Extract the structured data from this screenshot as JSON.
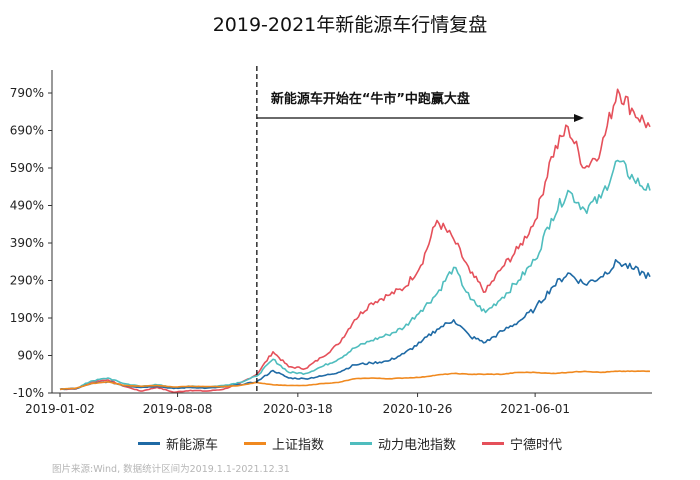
{
  "title": "2019-2021年新能源车行情复盘",
  "source_note": "图片来源:Wind, 数据统计区间为2019.1.1-2021.12.31",
  "colors": {
    "新能源车": "#1f6aa5",
    "上证指数": "#f0891f",
    "动力电池指数": "#4fbdbe",
    "宁德时代": "#e5505a",
    "axis": "#333333"
  },
  "chart_data": {
    "type": "line",
    "title": "2019-2021年新能源车行情复盘",
    "ylim": [
      -10,
      830
    ],
    "y_ticks": [
      "-10%",
      "90%",
      "190%",
      "290%",
      "390%",
      "490%",
      "590%",
      "690%",
      "790%"
    ],
    "x_ticks": [
      "2019-01-02",
      "2019-08-08",
      "2020-03-18",
      "2020-10-26",
      "2021-06-01"
    ],
    "grid": false,
    "legend_position": "bottom",
    "annotation": {
      "text": "新能源车开始在“牛市”中跑赢大盘",
      "x": "2020-01-02"
    },
    "x": [
      "2019-01-02",
      "2019-02-01",
      "2019-03-01",
      "2019-04-01",
      "2019-05-01",
      "2019-06-01",
      "2019-07-01",
      "2019-08-01",
      "2019-09-01",
      "2019-10-01",
      "2019-11-01",
      "2019-12-01",
      "2020-01-02",
      "2020-02-01",
      "2020-03-01",
      "2020-04-01",
      "2020-05-01",
      "2020-06-01",
      "2020-07-01",
      "2020-08-01",
      "2020-09-01",
      "2020-10-01",
      "2020-11-01",
      "2020-12-01",
      "2021-01-01",
      "2021-02-01",
      "2021-03-01",
      "2021-04-01",
      "2021-05-01",
      "2021-06-01",
      "2021-07-01",
      "2021-08-01",
      "2021-09-01",
      "2021-10-01",
      "2021-11-01",
      "2021-12-01",
      "2021-12-31"
    ],
    "series": [
      {
        "name": "新能源车",
        "values": [
          0,
          2,
          15,
          20,
          10,
          5,
          8,
          2,
          5,
          3,
          6,
          12,
          20,
          50,
          30,
          28,
          35,
          45,
          65,
          70,
          75,
          95,
          125,
          160,
          185,
          140,
          125,
          155,
          180,
          215,
          270,
          310,
          280,
          300,
          340,
          320,
          300
        ]
      },
      {
        "name": "上证指数",
        "values": [
          0,
          3,
          15,
          20,
          10,
          8,
          10,
          6,
          8,
          7,
          7,
          10,
          18,
          12,
          10,
          10,
          15,
          18,
          28,
          30,
          28,
          30,
          32,
          38,
          42,
          40,
          40,
          40,
          45,
          45,
          42,
          45,
          48,
          45,
          48,
          48,
          48
        ]
      },
      {
        "name": "动力电池指数",
        "values": [
          0,
          2,
          22,
          30,
          15,
          8,
          12,
          4,
          8,
          6,
          10,
          18,
          35,
          80,
          45,
          42,
          60,
          80,
          110,
          130,
          145,
          165,
          210,
          255,
          325,
          240,
          205,
          245,
          290,
          345,
          455,
          530,
          480,
          510,
          610,
          560,
          530
        ]
      },
      {
        "name": "宁德时代",
        "values": [
          0,
          1,
          20,
          25,
          8,
          -5,
          5,
          -8,
          -3,
          -5,
          0,
          15,
          40,
          100,
          60,
          55,
          85,
          120,
          185,
          230,
          250,
          270,
          330,
          450,
          400,
          310,
          260,
          325,
          375,
          450,
          620,
          700,
          590,
          640,
          800,
          740,
          700
        ]
      }
    ]
  }
}
